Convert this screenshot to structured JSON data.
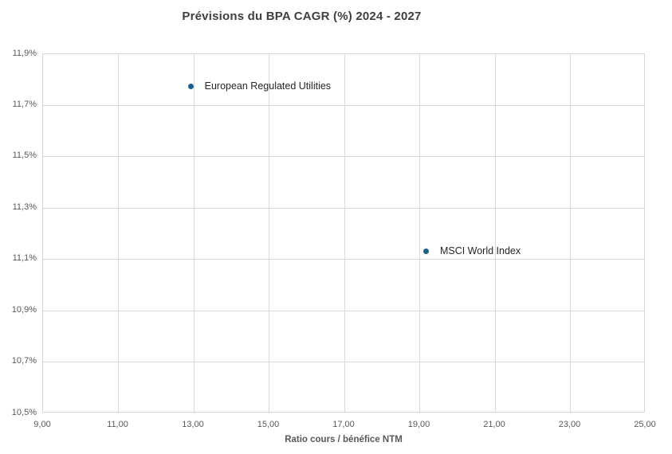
{
  "chart_data": {
    "type": "scatter",
    "title": "Prévisions du BPA CAGR (%) 2024 - 2027",
    "xlabel": "Ratio cours / bénéfice NTM",
    "ylabel": "",
    "xlim": [
      9,
      25
    ],
    "ylim": [
      10.5,
      11.9
    ],
    "grid": true,
    "legend_position": "none",
    "x_ticks": [
      {
        "value": 9,
        "label": "9,00"
      },
      {
        "value": 11,
        "label": "11,00"
      },
      {
        "value": 13,
        "label": "13,00"
      },
      {
        "value": 15,
        "label": "15,00"
      },
      {
        "value": 17,
        "label": "17,00"
      },
      {
        "value": 19,
        "label": "19,00"
      },
      {
        "value": 21,
        "label": "21,00"
      },
      {
        "value": 23,
        "label": "23,00"
      },
      {
        "value": 25,
        "label": "25,00"
      }
    ],
    "y_ticks": [
      {
        "value": 10.5,
        "label": "10,5%"
      },
      {
        "value": 10.7,
        "label": "10,7%"
      },
      {
        "value": 10.9,
        "label": "10,9%"
      },
      {
        "value": 11.1,
        "label": "11,1%"
      },
      {
        "value": 11.3,
        "label": "11,3%"
      },
      {
        "value": 11.5,
        "label": "11,5%"
      },
      {
        "value": 11.7,
        "label": "11,7%"
      },
      {
        "value": 11.9,
        "label": "11,9%"
      }
    ],
    "points": [
      {
        "label": "European Regulated Utilities",
        "x": 12.95,
        "y": 11.77
      },
      {
        "label": "MSCI World Index",
        "x": 19.2,
        "y": 11.13
      }
    ],
    "colors": {
      "marker": "#1F6287",
      "gridline": "#D9D9D9",
      "title_text": "#404040",
      "tick_text": "#595959",
      "axis_title_text": "#595959",
      "point_label_text": "#262626"
    }
  }
}
